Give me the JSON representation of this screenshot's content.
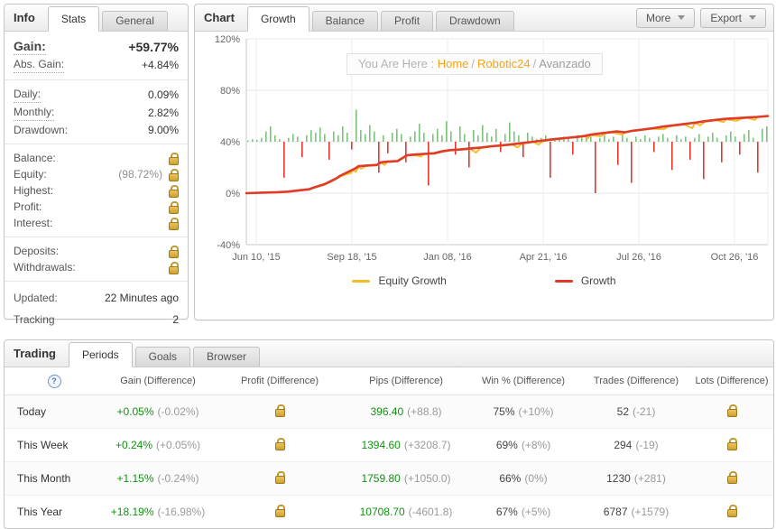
{
  "colors": {
    "green_text": "#129212",
    "growth_line": "#e03a28",
    "equity_line": "#f0bf2e",
    "bar_positive": "#7cc47c",
    "bar_negative": "#e0392b",
    "link_orange": "#f7a218",
    "lock_gold": "#cfa02f"
  },
  "info_panel": {
    "title": "Info",
    "tabs": [
      {
        "label": "Stats"
      },
      {
        "label": "General"
      }
    ],
    "gain_label": "Gain:",
    "gain_value": "+59.77%",
    "abs_gain_label": "Abs. Gain:",
    "abs_gain_value": "+4.84%",
    "daily_label": "Daily:",
    "daily_value": "0.09%",
    "monthly_label": "Monthly:",
    "monthly_value": "2.82%",
    "drawdown_label": "Drawdown:",
    "drawdown_value": "9.00%",
    "balance_label": "Balance:",
    "equity_label": "Equity:",
    "equity_value": "(98.72%)",
    "highest_label": "Highest:",
    "profit_label": "Profit:",
    "interest_label": "Interest:",
    "deposits_label": "Deposits:",
    "withdrawals_label": "Withdrawals:",
    "updated_label": "Updated:",
    "updated_value": "22 Minutes ago",
    "tracking_label": "Tracking",
    "tracking_value": "2"
  },
  "chart_panel": {
    "title": "Chart",
    "tabs": [
      {
        "label": "Growth"
      },
      {
        "label": "Balance"
      },
      {
        "label": "Profit"
      },
      {
        "label": "Drawdown"
      }
    ],
    "more_label": "More",
    "export_label": "Export",
    "breadcrumb_prefix": "You Are Here :",
    "breadcrumb_home": "Home",
    "breadcrumb_sep1": "/",
    "breadcrumb_site": "Robotic24",
    "breadcrumb_sep2": "/",
    "breadcrumb_page": "Avanzado",
    "legend": [
      {
        "label": "Equity Growth"
      },
      {
        "label": "Growth"
      }
    ]
  },
  "chart_data": {
    "type": "line",
    "title": "Growth",
    "xlabel": "",
    "ylabel": "",
    "ylim": [
      -40,
      120
    ],
    "grid": true,
    "legend_position": "bottom",
    "yticks": [
      {
        "value": 120,
        "label": "120%"
      },
      {
        "value": 80,
        "label": "80%"
      },
      {
        "value": 40,
        "label": "40%"
      },
      {
        "value": 0,
        "label": "0%"
      },
      {
        "value": -40,
        "label": "-40%"
      }
    ],
    "xticks": [
      "Jun 10, '15",
      "Sep 18, '15",
      "Jan 08, '16",
      "Apr 21, '16",
      "Jul 26, '16",
      "Oct 26, '16"
    ],
    "series": [
      {
        "name": "Equity Growth",
        "type": "line",
        "color": "#f0bf2e",
        "points": [
          [
            0,
            0
          ],
          [
            0.03,
            0.4
          ],
          [
            0.06,
            0.8
          ],
          [
            0.08,
            1.1
          ],
          [
            0.1,
            2
          ],
          [
            0.12,
            2.8
          ],
          [
            0.13,
            4.2
          ],
          [
            0.15,
            6.5
          ],
          [
            0.16,
            8.5
          ],
          [
            0.17,
            10.5
          ],
          [
            0.18,
            13
          ],
          [
            0.19,
            14.5
          ],
          [
            0.2,
            15.5
          ],
          [
            0.205,
            18
          ],
          [
            0.21,
            16.5
          ],
          [
            0.215,
            20.5
          ],
          [
            0.22,
            19
          ],
          [
            0.23,
            21.2
          ],
          [
            0.25,
            21.6
          ],
          [
            0.258,
            23.5
          ],
          [
            0.265,
            22
          ],
          [
            0.27,
            24.2
          ],
          [
            0.29,
            24.7
          ],
          [
            0.3,
            27
          ],
          [
            0.308,
            29.2
          ],
          [
            0.32,
            29.7
          ],
          [
            0.335,
            28.5
          ],
          [
            0.34,
            30.2
          ],
          [
            0.36,
            30.7
          ],
          [
            0.375,
            32.2
          ],
          [
            0.39,
            33.2
          ],
          [
            0.41,
            33.7
          ],
          [
            0.43,
            34.3
          ],
          [
            0.44,
            31.5
          ],
          [
            0.45,
            35.2
          ],
          [
            0.47,
            36.2
          ],
          [
            0.49,
            36.9
          ],
          [
            0.51,
            37.7
          ],
          [
            0.52,
            35.5
          ],
          [
            0.53,
            38.7
          ],
          [
            0.55,
            39.7
          ],
          [
            0.56,
            37.8
          ],
          [
            0.57,
            40.7
          ],
          [
            0.59,
            41.7
          ],
          [
            0.61,
            42.5
          ],
          [
            0.63,
            43.3
          ],
          [
            0.65,
            44.2
          ],
          [
            0.655,
            42.5
          ],
          [
            0.66,
            45.2
          ],
          [
            0.68,
            44.3
          ],
          [
            0.69,
            46.8
          ],
          [
            0.7,
            47.2
          ],
          [
            0.72,
            45.6
          ],
          [
            0.73,
            47.9
          ],
          [
            0.74,
            48.2
          ],
          [
            0.76,
            49.2
          ],
          [
            0.78,
            50.2
          ],
          [
            0.8,
            49.6
          ],
          [
            0.81,
            52
          ],
          [
            0.82,
            52.5
          ],
          [
            0.84,
            53.5
          ],
          [
            0.855,
            50.5
          ],
          [
            0.86,
            54.5
          ],
          [
            0.87,
            52.8
          ],
          [
            0.88,
            55.7
          ],
          [
            0.9,
            56.7
          ],
          [
            0.915,
            55.4
          ],
          [
            0.92,
            57.5
          ],
          [
            0.94,
            56.2
          ],
          [
            0.95,
            58.1
          ],
          [
            0.96,
            58.6
          ],
          [
            0.975,
            57
          ],
          [
            0.98,
            59.1
          ],
          [
            1,
            59.8
          ]
        ]
      },
      {
        "name": "Growth",
        "type": "line",
        "color": "#e03a28",
        "points": [
          [
            0,
            0
          ],
          [
            0.03,
            0.4
          ],
          [
            0.06,
            0.8
          ],
          [
            0.08,
            1.2
          ],
          [
            0.1,
            2.2
          ],
          [
            0.12,
            3
          ],
          [
            0.13,
            4.5
          ],
          [
            0.15,
            7
          ],
          [
            0.16,
            9
          ],
          [
            0.17,
            11
          ],
          [
            0.18,
            13.5
          ],
          [
            0.19,
            15.5
          ],
          [
            0.2,
            17.5
          ],
          [
            0.21,
            19.5
          ],
          [
            0.215,
            21
          ],
          [
            0.23,
            21.5
          ],
          [
            0.25,
            22
          ],
          [
            0.258,
            24
          ],
          [
            0.27,
            24.5
          ],
          [
            0.29,
            25
          ],
          [
            0.3,
            27.5
          ],
          [
            0.308,
            29.5
          ],
          [
            0.32,
            30
          ],
          [
            0.34,
            30.5
          ],
          [
            0.36,
            31
          ],
          [
            0.375,
            32.5
          ],
          [
            0.39,
            33.5
          ],
          [
            0.41,
            34
          ],
          [
            0.43,
            34.8
          ],
          [
            0.45,
            35.5
          ],
          [
            0.47,
            36.5
          ],
          [
            0.49,
            37.2
          ],
          [
            0.51,
            38
          ],
          [
            0.53,
            39
          ],
          [
            0.55,
            40
          ],
          [
            0.57,
            41
          ],
          [
            0.59,
            42
          ],
          [
            0.61,
            42.8
          ],
          [
            0.63,
            43.6
          ],
          [
            0.65,
            44.5
          ],
          [
            0.66,
            45.5
          ],
          [
            0.68,
            46.5
          ],
          [
            0.7,
            47.5
          ],
          [
            0.71,
            48
          ],
          [
            0.725,
            47.3
          ],
          [
            0.74,
            48.5
          ],
          [
            0.76,
            49.5
          ],
          [
            0.78,
            50.5
          ],
          [
            0.8,
            51.8
          ],
          [
            0.82,
            52.8
          ],
          [
            0.84,
            53.8
          ],
          [
            0.86,
            54.8
          ],
          [
            0.88,
            56
          ],
          [
            0.9,
            57
          ],
          [
            0.92,
            57.8
          ],
          [
            0.94,
            58.3
          ],
          [
            0.96,
            58.8
          ],
          [
            0.98,
            59.3
          ],
          [
            1,
            60
          ]
        ]
      }
    ],
    "daily_change_bars": {
      "baseline": 40,
      "positive_color": "#7cc47c",
      "negative_color": "#e0392b",
      "values": [
        1,
        2,
        1.5,
        3,
        8,
        12,
        5,
        2,
        -28,
        3,
        6,
        4,
        -12,
        5,
        9,
        7,
        11,
        6,
        -14,
        8,
        5,
        12,
        7,
        -6,
        25,
        9,
        6,
        13,
        8,
        -24,
        5,
        -9,
        7,
        10,
        6,
        -16,
        4,
        8,
        14,
        7,
        -34,
        6,
        10,
        5,
        16,
        8,
        -10,
        12,
        6,
        -20,
        9,
        5,
        13,
        7,
        4,
        10,
        -8,
        6,
        15,
        8,
        5,
        -12,
        7,
        4,
        2,
        3,
        5,
        -28,
        3,
        2,
        4,
        3,
        -10,
        5,
        3,
        6,
        4,
        -40,
        3,
        5,
        2,
        4,
        -18,
        6,
        3,
        -32,
        4,
        2,
        5,
        3,
        -8,
        4,
        6,
        3,
        -22,
        5,
        2,
        4,
        -14,
        3,
        6,
        -29,
        4,
        7,
        3,
        -16,
        5,
        8,
        4,
        -10,
        6,
        9,
        3,
        -24,
        10,
        12
      ]
    }
  },
  "trading_panel": {
    "title": "Trading",
    "tabs": [
      {
        "label": "Periods"
      },
      {
        "label": "Goals"
      },
      {
        "label": "Browser"
      }
    ],
    "help_icon": "?",
    "columns": [
      {
        "label": "Gain (Difference)"
      },
      {
        "label": "Profit (Difference)"
      },
      {
        "label": "Pips (Difference)"
      },
      {
        "label": "Win % (Difference)"
      },
      {
        "label": "Trades (Difference)"
      },
      {
        "label": "Lots (Difference)"
      }
    ],
    "rows": [
      {
        "period": "Today",
        "gain": "+0.05%",
        "gain_diff": "(-0.02%)",
        "pips": "396.40",
        "pips_diff": "(+88.8)",
        "win": "75%",
        "win_diff": "(+10%)",
        "trades": "52",
        "trades_diff": "(-21)"
      },
      {
        "period": "This Week",
        "gain": "+0.24%",
        "gain_diff": "(+0.05%)",
        "pips": "1394.60",
        "pips_diff": "(+3208.7)",
        "win": "69%",
        "win_diff": "(+8%)",
        "trades": "294",
        "trades_diff": "(-19)"
      },
      {
        "period": "This Month",
        "gain": "+1.15%",
        "gain_diff": "(-0.24%)",
        "pips": "1759.80",
        "pips_diff": "(+1050.0)",
        "win": "66%",
        "win_diff": "(0%)",
        "trades": "1230",
        "trades_diff": "(+281)"
      },
      {
        "period": "This Year",
        "gain": "+18.19%",
        "gain_diff": "(-16.98%)",
        "pips": "10708.70",
        "pips_diff": "(-4601.8)",
        "win": "67%",
        "win_diff": "(+5%)",
        "trades": "6787",
        "trades_diff": "(+1579)"
      }
    ]
  }
}
